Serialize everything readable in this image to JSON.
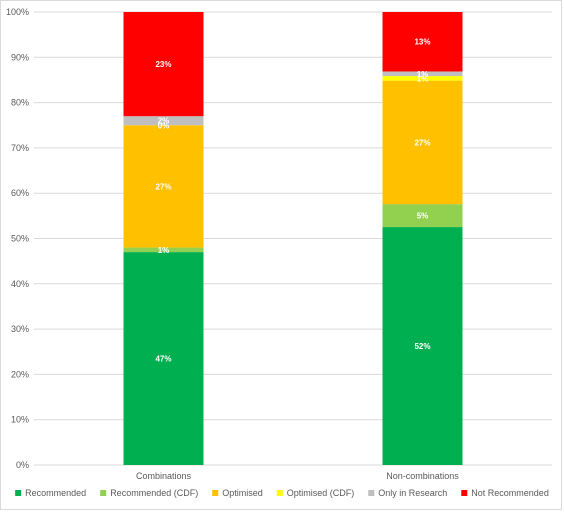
{
  "chart_data": {
    "type": "bar",
    "stacked": true,
    "percent": true,
    "categories": [
      "Combinations",
      "Non-combinations"
    ],
    "series": [
      {
        "name": "Recommended",
        "values": [
          47,
          52
        ],
        "labels": [
          "47%",
          "52%"
        ],
        "color": "#00b050"
      },
      {
        "name": "Recommended (CDF)",
        "values": [
          1,
          5
        ],
        "labels": [
          "1%",
          "5%"
        ],
        "color": "#92d050"
      },
      {
        "name": "Optimised",
        "values": [
          27,
          27
        ],
        "labels": [
          "27%",
          "27%"
        ],
        "color": "#ffc000"
      },
      {
        "name": "Optimised (CDF)",
        "values": [
          0,
          1
        ],
        "labels": [
          "0%",
          "1%"
        ],
        "color": "#ffff00"
      },
      {
        "name": "Only in Research",
        "values": [
          2,
          1
        ],
        "labels": [
          "2%",
          "1%"
        ],
        "color": "#bfbfbf"
      },
      {
        "name": "Not Recommended",
        "values": [
          23,
          13
        ],
        "labels": [
          "23%",
          "13%"
        ],
        "color": "#ff0000"
      }
    ],
    "ylim": [
      0,
      100
    ],
    "yticks": [
      "0%",
      "10%",
      "20%",
      "30%",
      "40%",
      "50%",
      "60%",
      "70%",
      "80%",
      "90%",
      "100%"
    ],
    "grid": true,
    "legend_position": "bottom",
    "title": "",
    "xlabel": "",
    "ylabel": ""
  }
}
